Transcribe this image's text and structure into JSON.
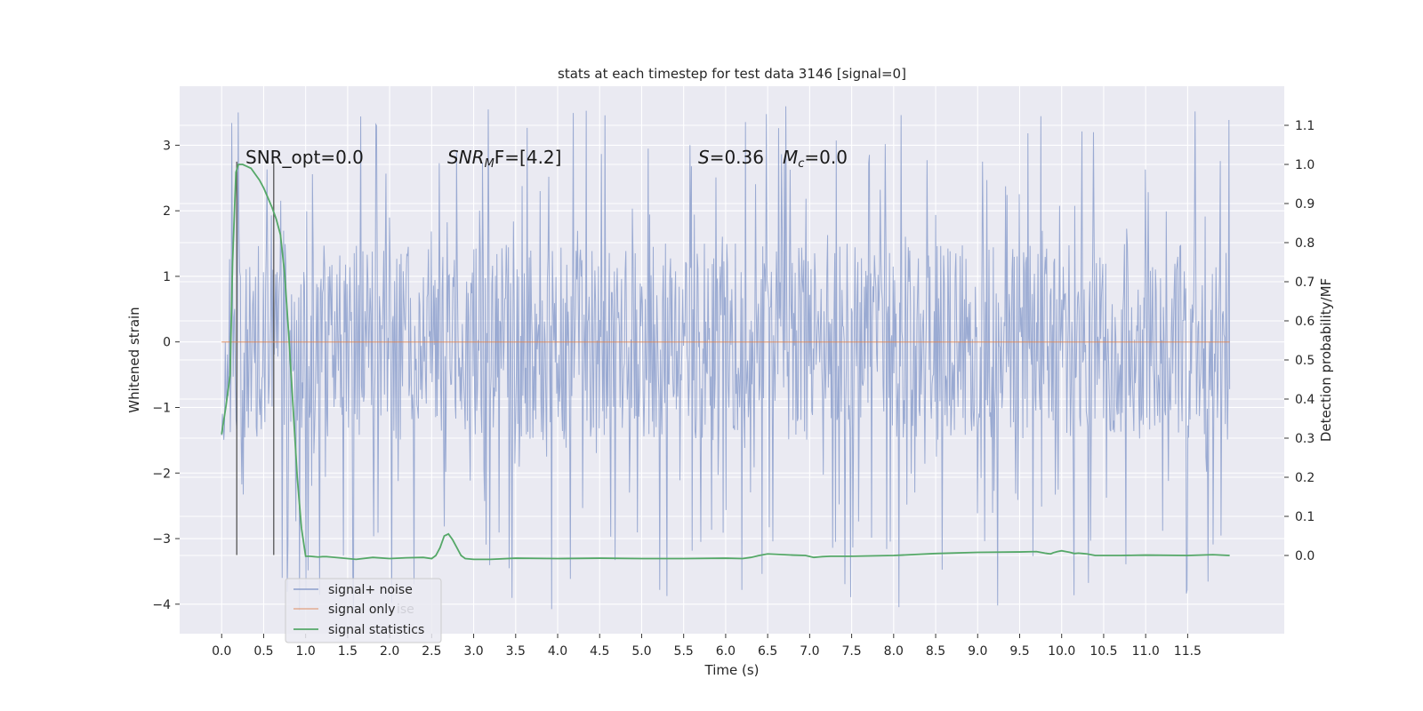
{
  "chart_data": {
    "type": "line",
    "title": "stats at each timestep for test data 3146 [signal=0]",
    "xlabel": "Time (s)",
    "ylabel": "Whitened strain",
    "y2label": "Detection probability/MF",
    "xlim": [
      -0.5,
      12.65
    ],
    "ylim": [
      -4.45,
      3.9
    ],
    "y2lim": [
      -0.2,
      1.2
    ],
    "grid": true,
    "x_ticks": [
      0.0,
      0.5,
      1.0,
      1.5,
      2.0,
      2.5,
      3.0,
      3.5,
      4.0,
      4.5,
      5.0,
      5.5,
      6.0,
      6.5,
      7.0,
      7.5,
      8.0,
      8.5,
      9.0,
      9.5,
      10.0,
      10.5,
      11.0,
      11.5
    ],
    "x_tick_labels": [
      "0.0",
      "0.5",
      "1.0",
      "1.5",
      "2.0",
      "2.5",
      "3.0",
      "3.5",
      "4.0",
      "4.5",
      "5.0",
      "5.5",
      "6.0",
      "6.5",
      "7.0",
      "7.5",
      "8.0",
      "8.5",
      "9.0",
      "9.5",
      "10.0",
      "10.5",
      "11.0",
      "11.5"
    ],
    "y_ticks": [
      3,
      2,
      1,
      0,
      -1,
      -2,
      -3,
      -4
    ],
    "y_tick_labels": [
      "3",
      "2",
      "1",
      "0",
      "−1",
      "−2",
      "−3",
      "−4"
    ],
    "y2_ticks": [
      1.1,
      1.0,
      0.9,
      0.8,
      0.7,
      0.6,
      0.5,
      0.4,
      0.3,
      0.2,
      0.1,
      0.0
    ],
    "y2_tick_labels": [
      "1.1",
      "1.0",
      "0.9",
      "0.8",
      "0.7",
      "0.6",
      "0.5",
      "0.4",
      "0.3",
      "0.2",
      "0.1",
      "0.0"
    ],
    "legend": {
      "placement": "lower-left",
      "entries": [
        "signal+ noise",
        "signal only",
        "signal statistics"
      ],
      "hidden_fragment": "ise"
    },
    "annotations": {
      "snr_opt": "SNR_opt=0.0",
      "snr_mf_main": "SNR",
      "snr_mf_sub": "M",
      "snr_mf_rest": "F=[4.2]",
      "s_main": "S",
      "s_rest": "=0.36",
      "mc_main": "M",
      "mc_sub": "c",
      "mc_rest": "=0.0"
    },
    "vertical_markers": [
      0.18,
      0.62
    ],
    "noise": {
      "name": "signal+ noise",
      "color": "#8c9fcc",
      "duration": 12.0,
      "samples": 1400,
      "core_range": [
        -1.5,
        1.5
      ],
      "spike_max": 3.6,
      "spike_min": -4.1
    },
    "signal_only": {
      "name": "signal only",
      "color": "#dd8452",
      "x": [
        0.0,
        12.0
      ],
      "values": [
        0.0,
        0.0
      ]
    },
    "signal_statistics": {
      "name": "signal statistics",
      "color": "#55a868",
      "x": [
        0.0,
        0.05,
        0.1,
        0.13,
        0.17,
        0.2,
        0.25,
        0.3,
        0.35,
        0.4,
        0.45,
        0.5,
        0.55,
        0.6,
        0.65,
        0.7,
        0.75,
        0.8,
        0.85,
        0.9,
        0.95,
        1.0,
        1.05,
        1.1,
        1.15,
        1.2,
        1.25,
        1.3,
        1.4,
        1.6,
        1.8,
        2.0,
        2.2,
        2.4,
        2.5,
        2.55,
        2.6,
        2.65,
        2.7,
        2.75,
        2.8,
        2.85,
        2.9,
        3.0,
        3.2,
        3.5,
        4.0,
        4.5,
        5.0,
        5.5,
        6.0,
        6.2,
        6.3,
        6.4,
        6.5,
        6.8,
        6.95,
        7.05,
        7.1,
        7.15,
        7.25,
        7.5,
        8.0,
        8.5,
        9.0,
        9.5,
        9.7,
        9.75,
        9.8,
        9.83,
        9.87,
        9.9,
        9.95,
        10.0,
        10.05,
        10.1,
        10.15,
        10.2,
        10.25,
        10.3,
        10.35,
        10.4,
        10.45,
        10.5,
        10.7,
        11.0,
        11.5,
        11.8,
        12.0
      ],
      "values": [
        0.31,
        0.38,
        0.46,
        0.75,
        0.98,
        1.0,
        1.0,
        0.995,
        0.99,
        0.975,
        0.96,
        0.94,
        0.915,
        0.89,
        0.86,
        0.82,
        0.72,
        0.56,
        0.38,
        0.2,
        0.07,
        -0.002,
        -0.002,
        -0.003,
        -0.004,
        -0.003,
        -0.003,
        -0.004,
        -0.006,
        -0.01,
        -0.005,
        -0.008,
        -0.006,
        -0.005,
        -0.008,
        0.0,
        0.02,
        0.05,
        0.055,
        0.04,
        0.02,
        0.0,
        -0.008,
        -0.01,
        -0.01,
        -0.007,
        -0.008,
        -0.007,
        -0.008,
        -0.008,
        -0.007,
        -0.008,
        -0.005,
        0.0,
        0.004,
        0.001,
        0.0,
        -0.005,
        -0.004,
        -0.003,
        -0.002,
        -0.002,
        0.0,
        0.005,
        0.008,
        0.009,
        0.01,
        0.008,
        0.006,
        0.005,
        0.004,
        0.007,
        0.01,
        0.012,
        0.01,
        0.008,
        0.005,
        0.006,
        0.005,
        0.004,
        0.002,
        0.0,
        0.0,
        0.0,
        0.0,
        0.001,
        0.0,
        0.002,
        0.0
      ]
    }
  }
}
